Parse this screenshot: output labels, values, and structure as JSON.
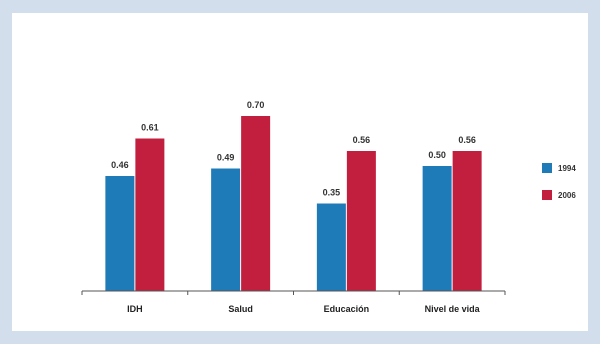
{
  "chart_data": {
    "type": "bar",
    "title": "",
    "xlabel": "",
    "ylabel": "",
    "categories": [
      "IDH",
      "Salud",
      "Educación",
      "Nivel de vida"
    ],
    "series": [
      {
        "name": "1994",
        "values": [
          0.46,
          0.49,
          0.35,
          0.5
        ],
        "labels": [
          "0.46",
          "0.49",
          "0.35",
          "0.50"
        ],
        "color": "#1f7bb8"
      },
      {
        "name": "2006",
        "values": [
          0.61,
          0.7,
          0.56,
          0.56
        ],
        "labels": [
          "0.61",
          "0.70",
          "0.56",
          "0.56"
        ],
        "color": "#c21f3e"
      }
    ],
    "ylim": [
      0,
      0.8
    ],
    "grid": false,
    "legend": "right"
  }
}
